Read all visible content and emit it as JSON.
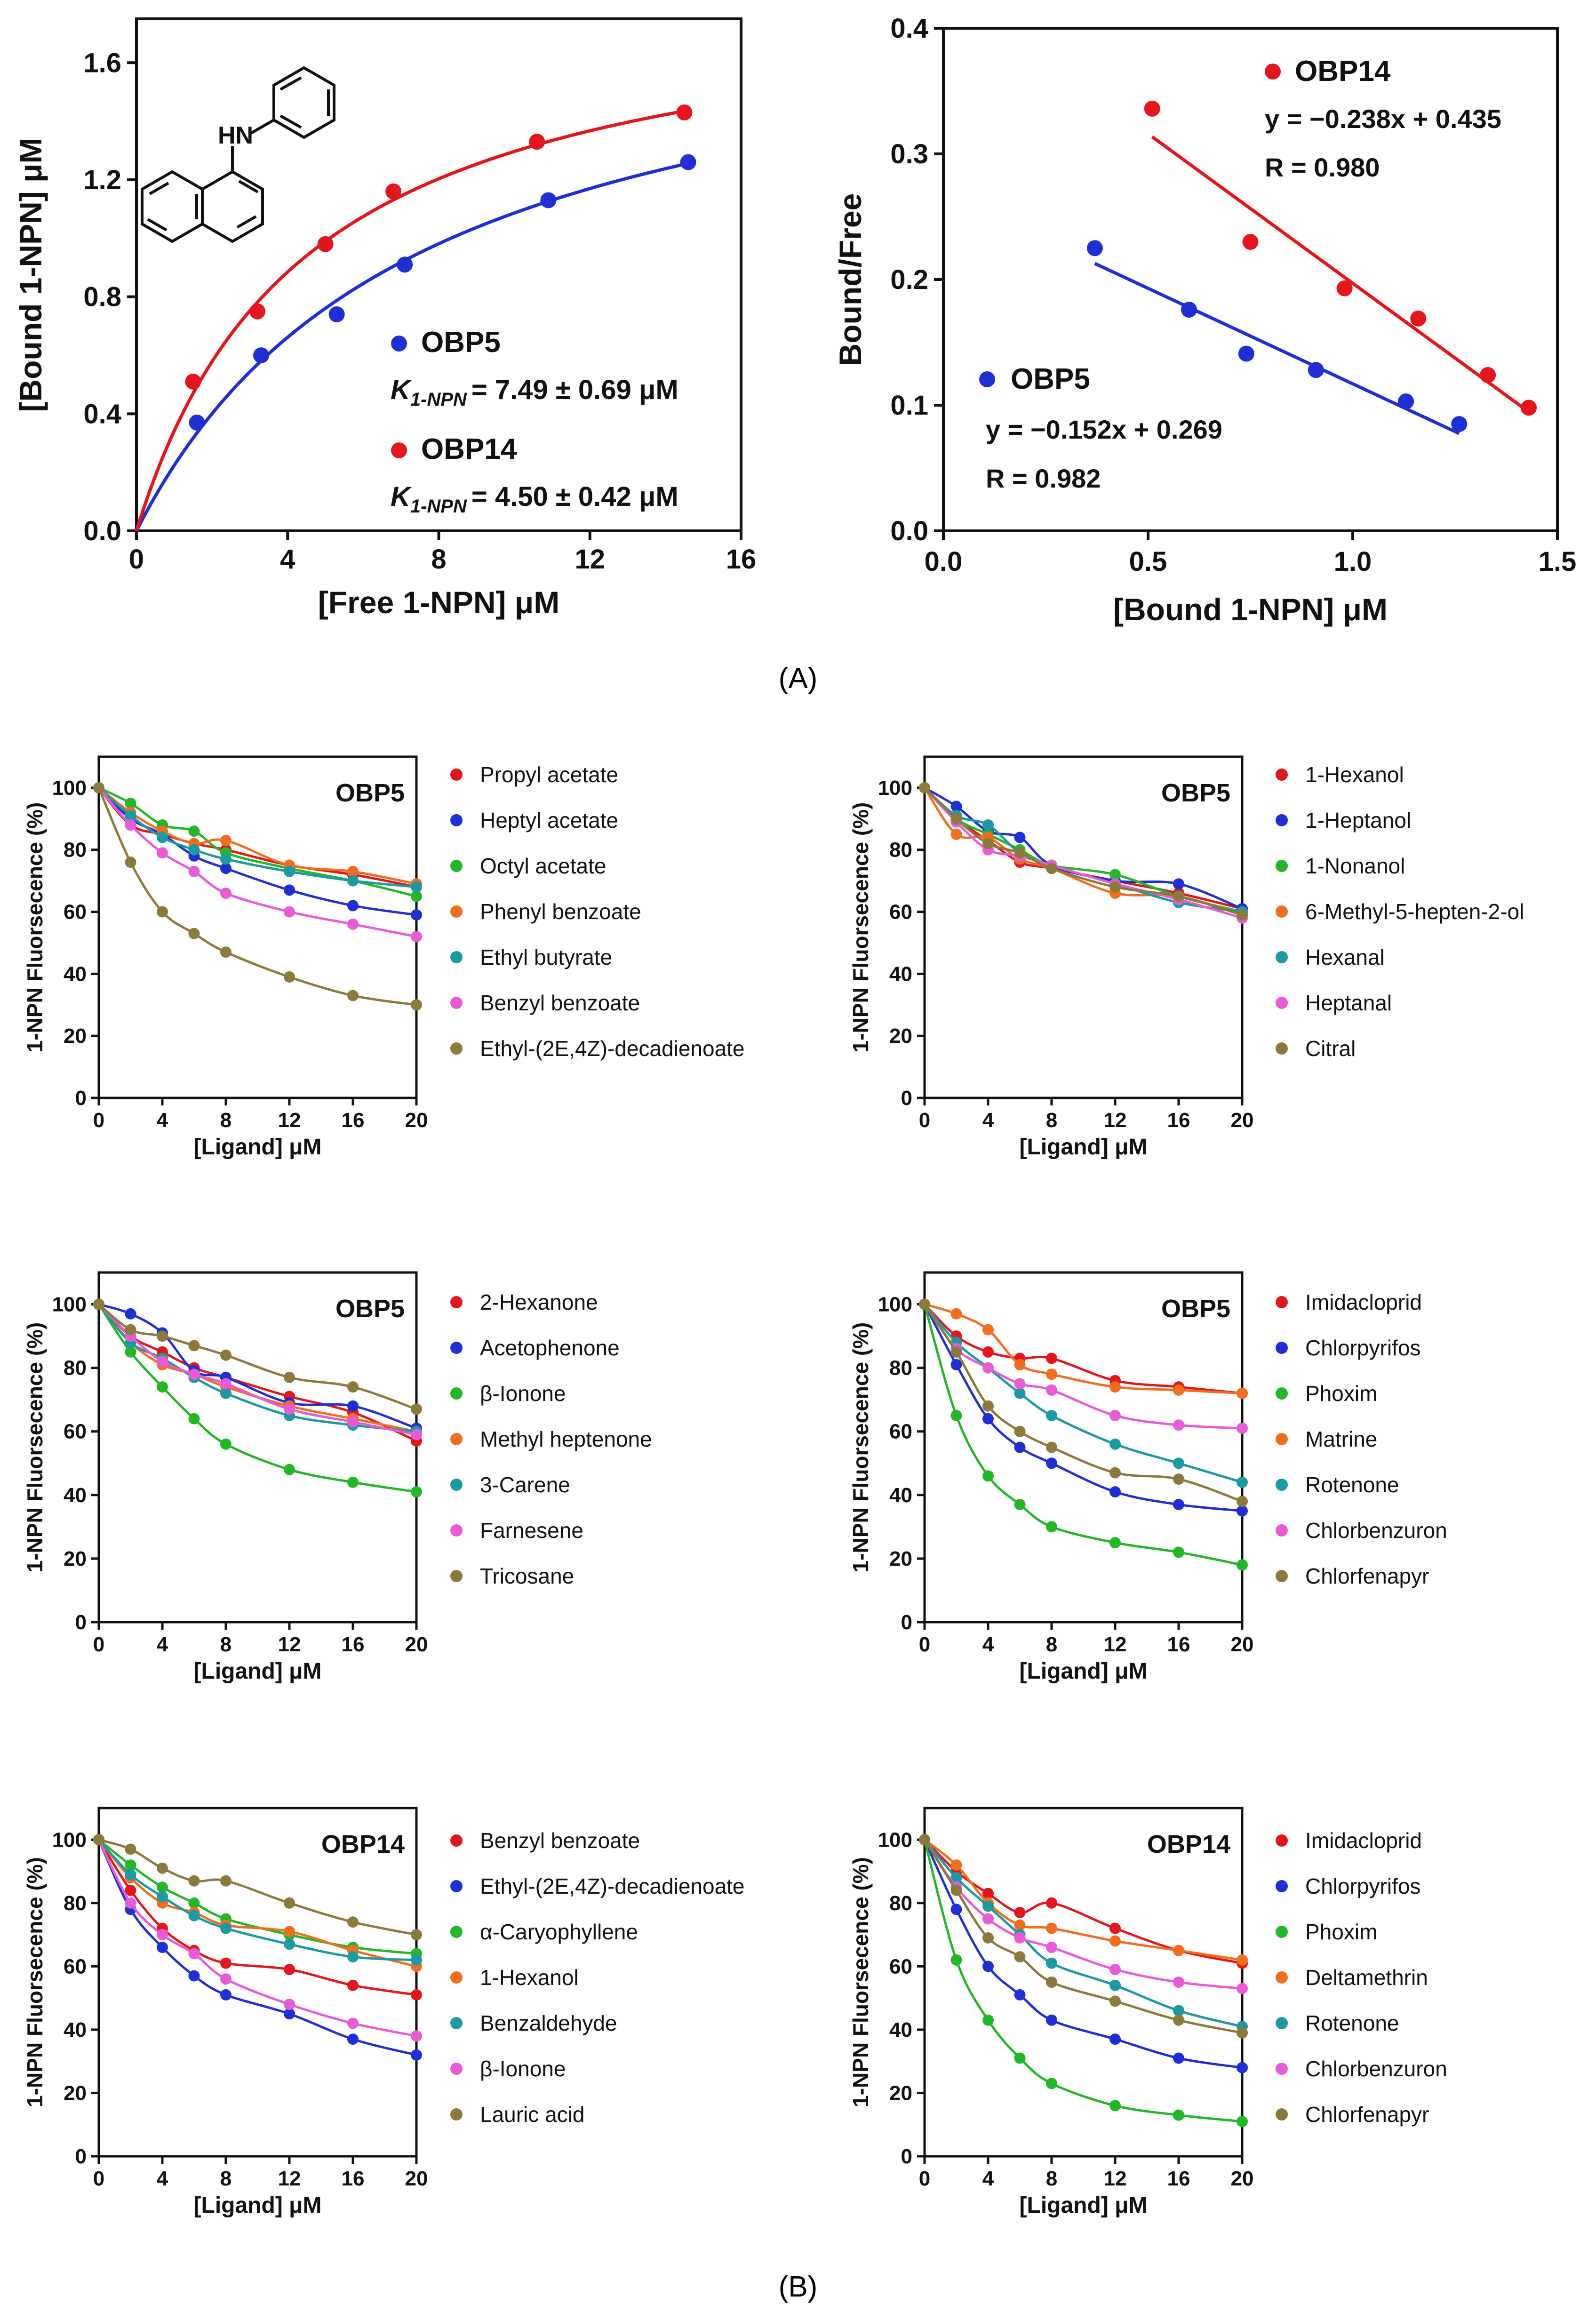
{
  "figure_labels": {
    "panel_a": "(A)",
    "panel_b": "(B)"
  },
  "molecule": {
    "label": "HN",
    "name": "1-NPN"
  },
  "chart_data": [
    {
      "id": "A1",
      "type": "scatter",
      "xlabel": "[Free 1-NPN] μM",
      "ylabel": "[Bound 1-NPN] μM",
      "xlim": [
        0,
        16
      ],
      "ylim": [
        0,
        1.75
      ],
      "xticks": [
        0,
        4,
        8,
        12,
        16
      ],
      "yticks": [
        0.0,
        0.4,
        0.8,
        1.2,
        1.6
      ],
      "xtick_labels": [
        "0",
        "4",
        "8",
        "12",
        "16"
      ],
      "ytick_labels": [
        "0.0",
        "0.4",
        "0.8",
        "1.2",
        "1.6"
      ],
      "series": [
        {
          "name": "OBP5",
          "color": "#1f2fd6",
          "kd": 7.49,
          "bmax": 1.9,
          "k_label": "K",
          "k_sub": "1-NPN",
          "k_value": "= 7.49 ± 0.69 μM",
          "x": [
            1.6,
            3.3,
            5.3,
            7.1,
            10.9,
            14.6
          ],
          "y": [
            0.37,
            0.6,
            0.74,
            0.91,
            1.13,
            1.26
          ]
        },
        {
          "name": "OBP14",
          "color": "#e4161c",
          "kd": 4.5,
          "bmax": 1.88,
          "k_label": "K",
          "k_sub": "1-NPN",
          "k_value": "= 4.50 ± 0.42 μM",
          "x": [
            1.5,
            3.2,
            5.0,
            6.8,
            10.6,
            14.5
          ],
          "y": [
            0.51,
            0.75,
            0.98,
            1.16,
            1.33,
            1.43
          ]
        }
      ]
    },
    {
      "id": "A2",
      "type": "scatter",
      "xlabel": "[Bound 1-NPN] μM",
      "ylabel": "Bound/Free",
      "xlim": [
        0,
        1.5
      ],
      "ylim": [
        0,
        0.4
      ],
      "xticks": [
        0,
        0.5,
        1.0,
        1.5
      ],
      "yticks": [
        0,
        0.1,
        0.2,
        0.3,
        0.4
      ],
      "xtick_labels": [
        "0.0",
        "0.5",
        "1.0",
        "1.5"
      ],
      "ytick_labels": [
        "0.0",
        "0.1",
        "0.2",
        "0.3",
        "0.4"
      ],
      "series": [
        {
          "name": "OBP14",
          "color": "#e4161c",
          "slope": -0.238,
          "intercept": 0.435,
          "fit_x": [
            0.51,
            1.43
          ],
          "equation": "y = −0.238x + 0.435",
          "r": "R = 0.980",
          "x": [
            0.51,
            0.75,
            0.98,
            1.16,
            1.33,
            1.43
          ],
          "y": [
            0.336,
            0.23,
            0.193,
            0.169,
            0.124,
            0.098
          ]
        },
        {
          "name": "OBP5",
          "color": "#1f2fd6",
          "slope": -0.152,
          "intercept": 0.269,
          "fit_x": [
            0.37,
            1.26
          ],
          "equation": "y = −0.152x + 0.269",
          "r": "R = 0.982",
          "x": [
            0.37,
            0.6,
            0.74,
            0.91,
            1.13,
            1.26
          ],
          "y": [
            0.225,
            0.176,
            0.141,
            0.128,
            0.103,
            0.085
          ]
        }
      ]
    },
    {
      "id": "B1",
      "type": "line",
      "title": "OBP5",
      "xlabel": "[Ligand] μM",
      "ylabel": "1-NPN Fluorsecence (%)",
      "x": [
        0,
        2,
        4,
        6,
        8,
        12,
        16,
        20
      ],
      "xlim": [
        0,
        20
      ],
      "ylim": [
        0,
        110
      ],
      "series": [
        {
          "name": "Propyl acetate",
          "color": "#e4161c",
          "values": [
            100,
            88,
            85,
            82,
            80,
            75,
            72,
            68
          ]
        },
        {
          "name": "Heptyl acetate",
          "color": "#1f2fd6",
          "values": [
            100,
            90,
            85,
            78,
            74,
            67,
            62,
            59
          ]
        },
        {
          "name": "Octyl acetate",
          "color": "#22b825",
          "values": [
            100,
            95,
            88,
            86,
            79,
            74,
            70,
            65
          ]
        },
        {
          "name": "Phenyl benzoate",
          "color": "#f26d1e",
          "values": [
            100,
            92,
            86,
            82,
            83,
            75,
            73,
            69
          ]
        },
        {
          "name": "Ethyl butyrate",
          "color": "#1b9aa4",
          "values": [
            100,
            91,
            84,
            80,
            77,
            73,
            70,
            68
          ]
        },
        {
          "name": "Benzyl benzoate",
          "color": "#e85ad6",
          "values": [
            100,
            88,
            79,
            73,
            66,
            60,
            56,
            52
          ]
        },
        {
          "name": "Ethyl-(2E,4Z)-decadienoate",
          "color": "#8b7a3a",
          "values": [
            100,
            76,
            60,
            53,
            47,
            39,
            33,
            30
          ]
        }
      ]
    },
    {
      "id": "B2",
      "type": "line",
      "title": "OBP5",
      "xlabel": "[Ligand] μM",
      "ylabel": "1-NPN Fluorsecence (%)",
      "x": [
        0,
        2,
        4,
        6,
        8,
        12,
        16,
        20
      ],
      "xlim": [
        0,
        20
      ],
      "ylim": [
        0,
        110
      ],
      "series": [
        {
          "name": "1-Hexanol",
          "color": "#e4161c",
          "values": [
            100,
            90,
            83,
            76,
            74,
            70,
            66,
            61
          ]
        },
        {
          "name": "1-Heptanol",
          "color": "#1f2fd6",
          "values": [
            100,
            94,
            86,
            84,
            75,
            70,
            69,
            61
          ]
        },
        {
          "name": "1-Nonanol",
          "color": "#22b825",
          "values": [
            100,
            90,
            85,
            80,
            75,
            72,
            65,
            60
          ]
        },
        {
          "name": "6-Methyl-5-hepten-2-ol",
          "color": "#f26d1e",
          "values": [
            100,
            85,
            84,
            77,
            74,
            66,
            65,
            59
          ]
        },
        {
          "name": "Hexanal",
          "color": "#1b9aa4",
          "values": [
            100,
            91,
            88,
            79,
            75,
            69,
            63,
            60
          ]
        },
        {
          "name": "Heptanal",
          "color": "#e85ad6",
          "values": [
            100,
            89,
            80,
            78,
            75,
            69,
            64,
            58
          ]
        },
        {
          "name": "Citral",
          "color": "#8b7a3a",
          "values": [
            100,
            90,
            82,
            79,
            74,
            68,
            65,
            59
          ]
        }
      ]
    },
    {
      "id": "B3",
      "type": "line",
      "title": "OBP5",
      "xlabel": "[Ligand] μM",
      "ylabel": "1-NPN Fluorsecence (%)",
      "x": [
        0,
        2,
        4,
        6,
        8,
        12,
        16,
        20
      ],
      "xlim": [
        0,
        20
      ],
      "ylim": [
        0,
        110
      ],
      "series": [
        {
          "name": "2-Hexanone",
          "color": "#e4161c",
          "values": [
            100,
            90,
            85,
            80,
            77,
            71,
            66,
            57
          ]
        },
        {
          "name": "Acetophenone",
          "color": "#1f2fd6",
          "values": [
            100,
            97,
            91,
            79,
            77,
            69,
            68,
            61
          ]
        },
        {
          "name": "β-Ionone",
          "color": "#22b825",
          "values": [
            100,
            85,
            74,
            64,
            56,
            48,
            44,
            41
          ]
        },
        {
          "name": "Methyl heptenone",
          "color": "#f26d1e",
          "values": [
            100,
            88,
            81,
            78,
            74,
            68,
            64,
            60
          ]
        },
        {
          "name": "3-Carene",
          "color": "#1b9aa4",
          "values": [
            100,
            88,
            83,
            77,
            72,
            65,
            62,
            60
          ]
        },
        {
          "name": "Farnesene",
          "color": "#e85ad6",
          "values": [
            100,
            90,
            82,
            78,
            75,
            67,
            63,
            59
          ]
        },
        {
          "name": "Tricosane",
          "color": "#8b7a3a",
          "values": [
            100,
            92,
            90,
            87,
            84,
            77,
            74,
            67
          ]
        }
      ]
    },
    {
      "id": "B4",
      "type": "line",
      "title": "OBP5",
      "xlabel": "[Ligand] μM",
      "ylabel": "1-NPN Fluorsecence (%)",
      "x": [
        0,
        2,
        4,
        6,
        8,
        12,
        16,
        20
      ],
      "xlim": [
        0,
        20
      ],
      "ylim": [
        0,
        110
      ],
      "series": [
        {
          "name": "Imidacloprid",
          "color": "#e4161c",
          "values": [
            100,
            90,
            85,
            83,
            83,
            76,
            74,
            72
          ]
        },
        {
          "name": "Chlorpyrifos",
          "color": "#1f2fd6",
          "values": [
            100,
            81,
            64,
            55,
            50,
            41,
            37,
            35
          ]
        },
        {
          "name": "Phoxim",
          "color": "#22b825",
          "values": [
            100,
            65,
            46,
            37,
            30,
            25,
            22,
            18
          ]
        },
        {
          "name": "Matrine",
          "color": "#f26d1e",
          "values": [
            100,
            97,
            92,
            81,
            78,
            74,
            73,
            72
          ]
        },
        {
          "name": "Rotenone",
          "color": "#1b9aa4",
          "values": [
            100,
            88,
            80,
            72,
            65,
            56,
            50,
            44
          ]
        },
        {
          "name": "Chlorbenzuron",
          "color": "#e85ad6",
          "values": [
            100,
            86,
            80,
            75,
            73,
            65,
            62,
            61
          ]
        },
        {
          "name": "Chlorfenapyr",
          "color": "#8b7a3a",
          "values": [
            100,
            85,
            68,
            60,
            55,
            47,
            45,
            38
          ]
        }
      ]
    },
    {
      "id": "B5",
      "type": "line",
      "title": "OBP14",
      "xlabel": "[Ligand] μM",
      "ylabel": "1-NPN Fluorsecence (%)",
      "x": [
        0,
        2,
        4,
        6,
        8,
        12,
        16,
        20
      ],
      "xlim": [
        0,
        20
      ],
      "ylim": [
        0,
        110
      ],
      "series": [
        {
          "name": "Benzyl benzoate",
          "color": "#e4161c",
          "values": [
            100,
            84,
            72,
            65,
            61,
            59,
            54,
            51
          ]
        },
        {
          "name": "Ethyl-(2E,4Z)-decadienoate",
          "color": "#1f2fd6",
          "values": [
            100,
            78,
            66,
            57,
            51,
            45,
            37,
            32
          ]
        },
        {
          "name": "α-Caryophyllene",
          "color": "#22b825",
          "values": [
            100,
            92,
            85,
            80,
            75,
            70,
            66,
            64
          ]
        },
        {
          "name": "1-Hexanol",
          "color": "#f26d1e",
          "values": [
            100,
            88,
            80,
            77,
            73,
            71,
            65,
            60
          ]
        },
        {
          "name": "Benzaldehyde",
          "color": "#1b9aa4",
          "values": [
            100,
            89,
            82,
            76,
            72,
            67,
            63,
            62
          ]
        },
        {
          "name": "β-Ionone",
          "color": "#e85ad6",
          "values": [
            100,
            80,
            70,
            64,
            56,
            48,
            42,
            38
          ]
        },
        {
          "name": "Lauric acid",
          "color": "#8b7a3a",
          "values": [
            100,
            97,
            91,
            87,
            87,
            80,
            74,
            70
          ]
        }
      ]
    },
    {
      "id": "B6",
      "type": "line",
      "title": "OBP14",
      "xlabel": "[Ligand] μM",
      "ylabel": "1-NPN Fluorsecence (%)",
      "x": [
        0,
        2,
        4,
        6,
        8,
        12,
        16,
        20
      ],
      "xlim": [
        0,
        20
      ],
      "ylim": [
        0,
        110
      ],
      "series": [
        {
          "name": "Imidacloprid",
          "color": "#e4161c",
          "values": [
            100,
            90,
            83,
            77,
            80,
            72,
            65,
            61
          ]
        },
        {
          "name": "Chlorpyrifos",
          "color": "#1f2fd6",
          "values": [
            100,
            78,
            60,
            51,
            43,
            37,
            31,
            28
          ]
        },
        {
          "name": "Phoxim",
          "color": "#22b825",
          "values": [
            100,
            62,
            43,
            31,
            23,
            16,
            13,
            11
          ]
        },
        {
          "name": "Deltamethrin",
          "color": "#f26d1e",
          "values": [
            100,
            92,
            80,
            73,
            72,
            68,
            65,
            62
          ]
        },
        {
          "name": "Rotenone",
          "color": "#1b9aa4",
          "values": [
            100,
            88,
            79,
            70,
            61,
            54,
            46,
            41
          ]
        },
        {
          "name": "Chlorbenzuron",
          "color": "#e85ad6",
          "values": [
            100,
            85,
            75,
            69,
            66,
            59,
            55,
            53
          ]
        },
        {
          "name": "Chlorfenapyr",
          "color": "#8b7a3a",
          "values": [
            100,
            84,
            69,
            63,
            55,
            49,
            43,
            39
          ]
        }
      ]
    }
  ]
}
